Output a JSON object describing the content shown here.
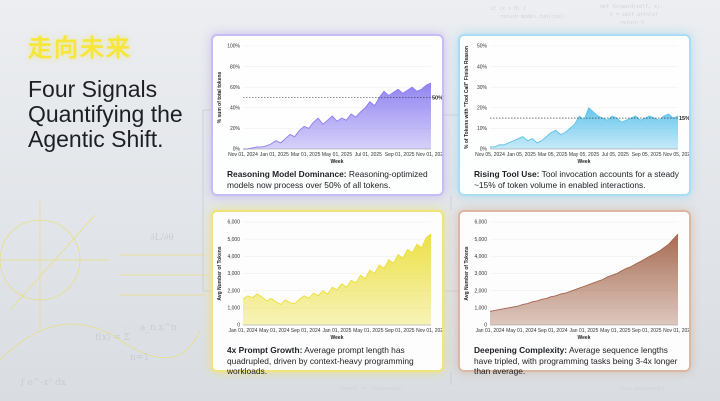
{
  "kicker": "走向未来",
  "headline": "Four Signals Quantifying the Agentic Shift.",
  "colors": {
    "purple": "#8b7df0",
    "blue": "#5fc3ec",
    "yellow": "#ecdf3a",
    "brown": "#a3644a"
  },
  "cards": [
    {
      "title": "Reasoning Model Dominance:",
      "desc": "Reasoning-optimized models now process over 50% of all tokens."
    },
    {
      "title": "Rising Tool Use:",
      "desc": "Tool invocation accounts for a steady ~15% of token volume in enabled interactions."
    },
    {
      "title": "4x Prompt Growth:",
      "desc": "Average prompt length has quadrupled, driven by context-heavy programming workloads."
    },
    {
      "title": "Deepening Complexity:",
      "desc": "Average sequence lengths have tripled, with programming tasks being 3-4x longer than average."
    }
  ],
  "chart_data": [
    {
      "type": "area",
      "xlabel": "Week",
      "ylabel": "% sum of total tokens",
      "x_ticks": [
        "Nov 01, 2024",
        "Jan 01, 2025",
        "Mar 01, 2025",
        "May 01, 2025",
        "Jul 01, 2025",
        "Sep 01, 2025",
        "Nov 01, 2025"
      ],
      "y_ticks": [
        "0%",
        "20%",
        "40%",
        "60%",
        "80%",
        "100%"
      ],
      "ylim": [
        0,
        100
      ],
      "reference_line": {
        "value": 50,
        "label": "50%"
      },
      "values": [
        0,
        0,
        1,
        2,
        2,
        3,
        5,
        8,
        6,
        10,
        14,
        12,
        18,
        22,
        20,
        26,
        30,
        24,
        28,
        32,
        27,
        30,
        28,
        34,
        31,
        36,
        40,
        46,
        42,
        50,
        56,
        52,
        55,
        58,
        54,
        57,
        60,
        56,
        58,
        62,
        64
      ]
    },
    {
      "type": "area",
      "xlabel": "Week",
      "ylabel": "% of Tokens with \"Tool Call\" Finish Reason",
      "x_ticks": [
        "Nov 05, 2024",
        "Jan 05, 2025",
        "Mar 05, 2025",
        "May 05, 2025",
        "Jul 05, 2025",
        "Sep 05, 2025",
        "Nov 05, 2025"
      ],
      "y_ticks": [
        "0%",
        "10%",
        "20%",
        "30%",
        "40%",
        "50%"
      ],
      "ylim": [
        0,
        50
      ],
      "reference_line": {
        "value": 15,
        "label": "15%"
      },
      "values": [
        1,
        1,
        2,
        2,
        3,
        4,
        5,
        6,
        4,
        5,
        3,
        4,
        6,
        8,
        9,
        7,
        8,
        10,
        12,
        16,
        14,
        20,
        18,
        16,
        15,
        14,
        16,
        15,
        13,
        14,
        15,
        16,
        14,
        15,
        16,
        15,
        14,
        16,
        17,
        15,
        16
      ]
    },
    {
      "type": "area",
      "xlabel": "Week",
      "ylabel": "Avg Number of Tokens",
      "x_ticks": [
        "Jan 01, 2024",
        "May 01, 2024",
        "Sep 01, 2024",
        "Jan 01, 2025",
        "May 01, 2025",
        "Sep 01, 2025",
        "Nov 01, 2025"
      ],
      "y_ticks": [
        "0",
        "1,000",
        "2,000",
        "3,000",
        "4,000",
        "5,000",
        "6,000"
      ],
      "ylim": [
        0,
        6000
      ],
      "values": [
        1500,
        1700,
        1600,
        1800,
        1650,
        1400,
        1550,
        1350,
        1200,
        1450,
        1300,
        1250,
        1500,
        1700,
        1550,
        1850,
        1700,
        2000,
        1800,
        2200,
        2050,
        2400,
        2200,
        2600,
        2450,
        2900,
        2700,
        3200,
        3000,
        3500,
        3300,
        3800,
        3600,
        4100,
        3900,
        4400,
        4200,
        4700,
        4500,
        5100,
        5300
      ]
    },
    {
      "type": "area",
      "xlabel": "Week",
      "ylabel": "Avg Number of Tokens",
      "x_ticks": [
        "Jan 01, 2024",
        "May 01, 2024",
        "Sep 01, 2024",
        "Jan 01, 2025",
        "May 01, 2025",
        "Sep 01, 2025",
        "Nov 01, 2025"
      ],
      "y_ticks": [
        "0",
        "1,000",
        "2,000",
        "3,000",
        "4,000",
        "5,000",
        "6,000"
      ],
      "ylim": [
        0,
        6000
      ],
      "values": [
        800,
        850,
        900,
        950,
        1000,
        1050,
        1100,
        1200,
        1250,
        1350,
        1400,
        1500,
        1550,
        1650,
        1700,
        1800,
        1850,
        1950,
        2050,
        2150,
        2250,
        2350,
        2450,
        2550,
        2650,
        2800,
        2900,
        3000,
        3150,
        3300,
        3400,
        3550,
        3700,
        3850,
        4000,
        4150,
        4300,
        4500,
        4700,
        5000,
        5300
      ]
    }
  ]
}
